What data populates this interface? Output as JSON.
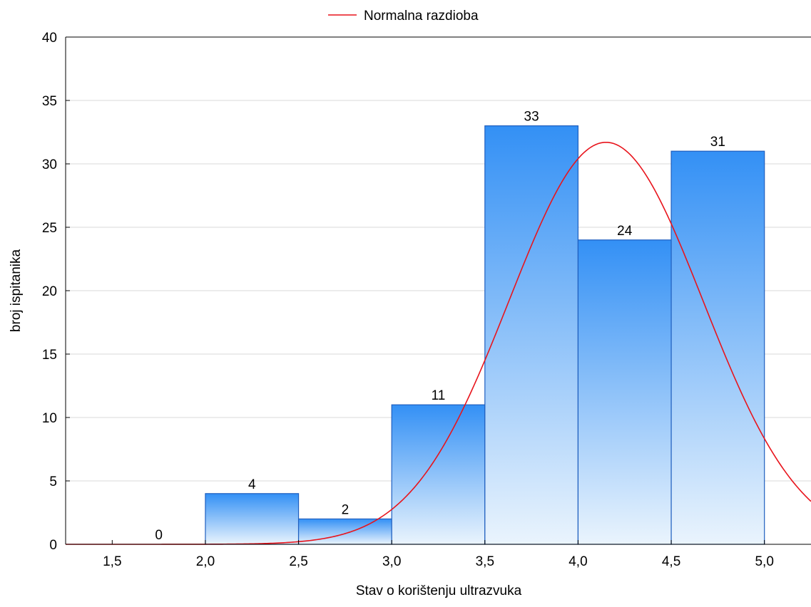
{
  "chart_data": {
    "type": "bar",
    "subtype": "histogram",
    "bins": [
      {
        "from": 1.5,
        "to": 2.0,
        "value": 0
      },
      {
        "from": 2.0,
        "to": 2.5,
        "value": 4
      },
      {
        "from": 2.5,
        "to": 3.0,
        "value": 2
      },
      {
        "from": 3.0,
        "to": 3.5,
        "value": 11
      },
      {
        "from": 3.5,
        "to": 4.0,
        "value": 33
      },
      {
        "from": 4.0,
        "to": 4.5,
        "value": 24
      },
      {
        "from": 4.5,
        "to": 5.0,
        "value": 31
      }
    ],
    "data_labels": [
      "0",
      "4",
      "2",
      "11",
      "33",
      "24",
      "31"
    ],
    "x_ticks": [
      "1,5",
      "2,0",
      "2,5",
      "3,0",
      "3,5",
      "4,0",
      "4,5",
      "5,0"
    ],
    "x_tick_values": [
      1.5,
      2.0,
      2.5,
      3.0,
      3.5,
      4.0,
      4.5,
      5.0
    ],
    "y_ticks": [
      "0",
      "5",
      "10",
      "15",
      "20",
      "25",
      "30",
      "35",
      "40"
    ],
    "y_tick_values": [
      0,
      5,
      10,
      15,
      20,
      25,
      30,
      35,
      40
    ],
    "xlabel": "Stav o korištenju ultrazvuka",
    "ylabel": "broj ispitanika",
    "xlim": [
      1.25,
      5.25
    ],
    "ylim": [
      0,
      40
    ],
    "grid": "horizontal",
    "legend": {
      "position": "top-center",
      "entries": [
        "Normalna razdioba"
      ]
    },
    "normal_curve": {
      "name": "Normalna razdioba",
      "mean": 4.15,
      "sd": 0.52,
      "peak": 31.7
    },
    "colors": {
      "bar_top": "#3390f5",
      "bar_bottom": "#eaf4fd",
      "bar_border": "#1f5fbf",
      "curve": "#e8141c",
      "grid": "#d9d9d9"
    }
  }
}
